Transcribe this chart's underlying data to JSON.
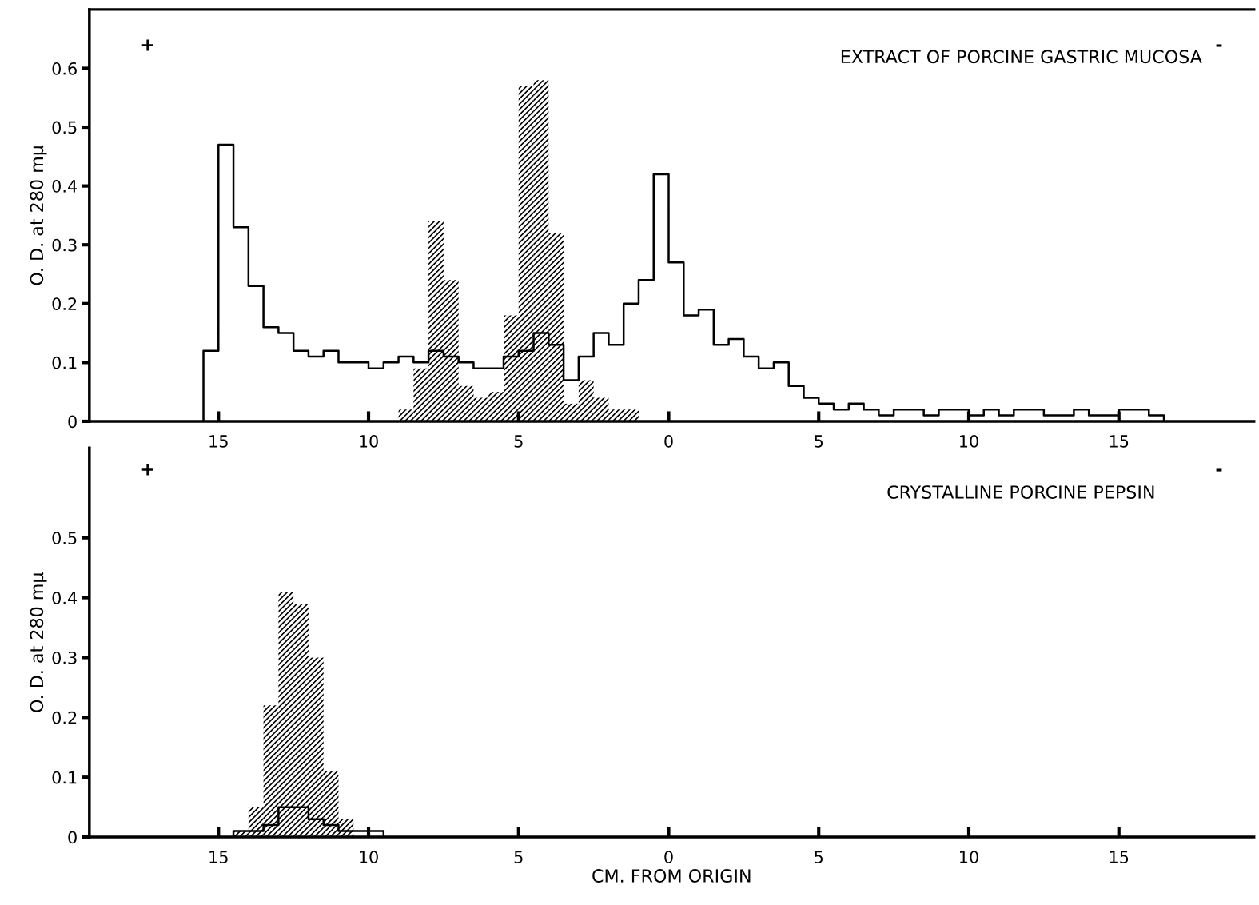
{
  "chart_data": [
    {
      "type": "histogram",
      "title": "EXTRACT OF PORCINE GASTRIC MUCOSA",
      "ylabel": "O. D. at 280 mμ",
      "annotations": [
        "+",
        "-"
      ],
      "bins": [
        -15.5,
        -15,
        -14.5,
        -14,
        -13.5,
        -13,
        -12.5,
        -12,
        -11.5,
        -11,
        -10.5,
        -10,
        -9.5,
        -9,
        -8.5,
        -8,
        -7.5,
        -7,
        -6.5,
        -6,
        -5.5,
        -5,
        -4.5,
        -4,
        -3.5,
        -3,
        -2.5,
        -2,
        -1.5,
        -1,
        -0.5,
        0,
        0.5,
        1,
        1.5,
        2,
        2.5,
        3,
        3.5,
        4,
        4.5,
        5,
        5.5,
        6,
        6.5,
        7,
        7.5,
        8,
        8.5,
        9,
        9.5,
        10,
        10.5,
        11,
        11.5,
        12,
        12.5,
        13,
        13.5,
        14,
        14.5,
        15,
        15.5,
        16,
        16.5
      ],
      "series": [
        {
          "type": "step",
          "color": "#000000",
          "x": [
            -15.5,
            -15.5,
            -15,
            -14.5,
            -14,
            -13.5,
            -13,
            -12.5,
            -12,
            -11.5,
            -11,
            -10.5,
            -10,
            -9.5,
            -9,
            -8.5,
            -8,
            -7.5,
            -7,
            -6.5,
            -6,
            -5.5,
            -5,
            -4.5,
            -4,
            -3.5,
            -3,
            -2.5,
            -2,
            -1.5,
            -1,
            -0.5,
            0,
            0.5,
            1,
            1.5,
            2,
            2.5,
            3,
            3.5,
            4,
            4.5,
            5,
            5.5,
            6,
            6.5,
            7,
            7.5,
            8,
            8.5,
            9,
            9.5,
            10,
            10.5,
            11,
            11.5,
            12,
            12.5,
            13,
            13.5,
            14,
            14.5,
            15,
            15.5,
            16,
            16.5
          ],
          "values": [
            0,
            0.12,
            0.47,
            0.33,
            0.23,
            0.16,
            0.15,
            0.12,
            0.11,
            0.12,
            0.1,
            0.1,
            0.09,
            0.1,
            0.11,
            0.1,
            0.12,
            0.11,
            0.1,
            0.09,
            0.09,
            0.11,
            0.12,
            0.15,
            0.13,
            0.07,
            0.11,
            0.15,
            0.13,
            0.2,
            0.24,
            0.42,
            0.27,
            0.18,
            0.19,
            0.13,
            0.14,
            0.11,
            0.09,
            0.1,
            0.06,
            0.04,
            0.03,
            0.02,
            0.03,
            0.02,
            0.01,
            0.02,
            0.02,
            0.01,
            0.02,
            0.02,
            0.01,
            0.02,
            0.01,
            0.02,
            0.02,
            0.01,
            0.01,
            0.02,
            0.01,
            0.01,
            0.02,
            0.02,
            0.01,
            0
          ]
        },
        {
          "type": "histogram",
          "color": "#000000",
          "values": [
            null,
            null,
            null,
            null,
            null,
            null,
            null,
            null,
            null,
            null,
            null,
            null,
            null,
            0.02,
            0.09,
            0.34,
            0.24,
            0.06,
            0.04,
            0.05,
            0.18,
            0.57,
            0.58,
            0.32,
            0.03,
            0.07,
            0.04,
            0.02,
            0.02,
            null,
            null,
            null,
            null,
            null,
            null,
            null,
            null,
            null,
            null,
            null,
            null,
            null,
            null,
            null,
            null,
            null,
            null,
            null,
            null,
            null,
            null,
            null,
            null,
            null,
            null,
            null,
            null,
            null,
            null,
            null,
            null,
            null,
            null,
            null
          ]
        }
      ],
      "xlim": [
        -19.3,
        19.5
      ],
      "ylim": [
        0,
        0.7
      ],
      "xticks": [
        {
          "value": -15,
          "label": "15"
        },
        {
          "value": -10,
          "label": "10"
        },
        {
          "value": -5,
          "label": "5"
        },
        0,
        5,
        10,
        15
      ],
      "yticks": [
        0,
        0.1,
        0.2,
        0.3,
        0.4,
        0.5,
        0.6
      ],
      "grid": false,
      "legend": false
    },
    {
      "type": "histogram",
      "title": "CRYSTALLINE PORCINE PEPSIN",
      "ylabel": "O. D. at 280 mμ",
      "xlabel": "CM. FROM ORIGIN",
      "annotations": [
        "+",
        "-"
      ],
      "bins": [
        -15.5,
        -15,
        -14.5,
        -14,
        -13.5,
        -13,
        -12.5,
        -12,
        -11.5,
        -11,
        -10.5,
        -10,
        -9.5
      ],
      "series": [
        {
          "type": "step",
          "color": "#000000",
          "x": [
            -14.5,
            -14.5,
            -14,
            -13.5,
            -13,
            -12.5,
            -12,
            -11.5,
            -11,
            -10.5,
            -10,
            -9.5
          ],
          "values": [
            0,
            0.01,
            0.01,
            0.02,
            0.05,
            0.05,
            0.03,
            0.02,
            0.01,
            0.01,
            0.01,
            0
          ]
        },
        {
          "type": "histogram",
          "color": "#000000",
          "values": [
            null,
            null,
            0.01,
            0.05,
            0.22,
            0.41,
            0.39,
            0.3,
            0.11,
            0.03,
            null,
            null
          ]
        }
      ],
      "xlim": [
        -19.3,
        19.5
      ],
      "ylim": [
        0,
        0.65
      ],
      "xticks": [
        {
          "value": -15,
          "label": "15"
        },
        {
          "value": -10,
          "label": "10"
        },
        {
          "value": -5,
          "label": "5"
        },
        0,
        5,
        10,
        15
      ],
      "yticks": [
        0,
        0.1,
        0.2,
        0.3,
        0.4,
        0.5
      ],
      "grid": false,
      "legend": false
    }
  ]
}
